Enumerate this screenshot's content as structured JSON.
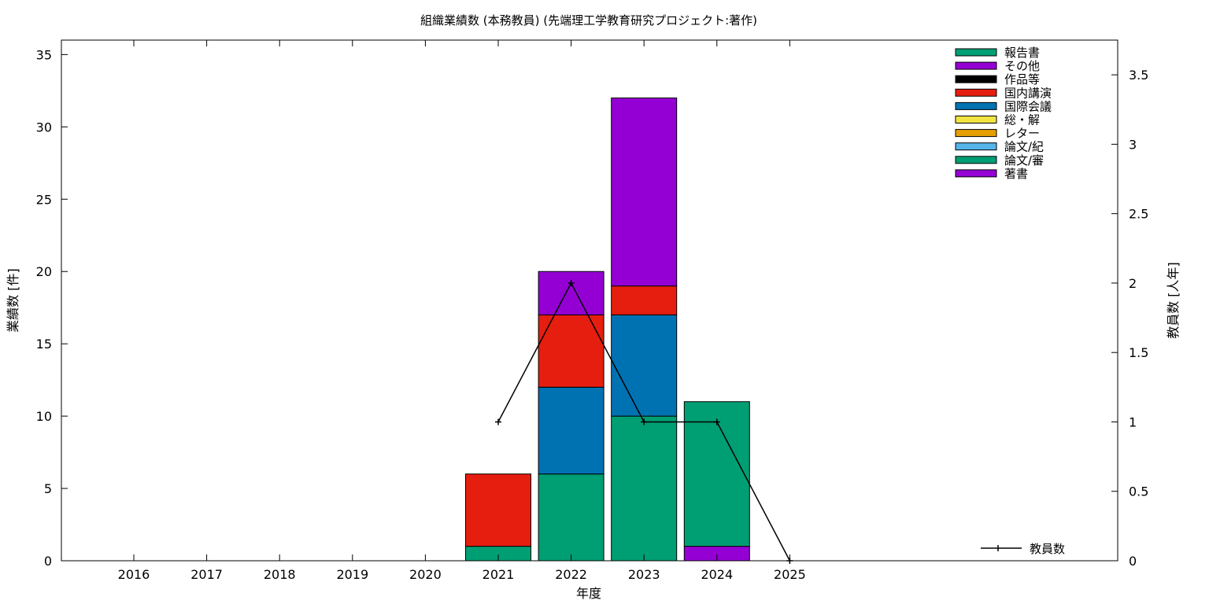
{
  "chart_data": {
    "type": "bar",
    "title": "組織業績数 (本務教員) (先端理工学教育研究プロジェクト:著作)",
    "xlabel": "年度",
    "ylabel": "業績数 [件]",
    "y2label": "教員数 [人年]",
    "categories": [
      "2016",
      "2017",
      "2018",
      "2019",
      "2020",
      "2021",
      "2022",
      "2023",
      "2024",
      "2025"
    ],
    "ylim": [
      0,
      36
    ],
    "y2lim": [
      0,
      3.75
    ],
    "yticks": [
      "0",
      "5",
      "10",
      "15",
      "20",
      "25",
      "30",
      "35"
    ],
    "y2ticks": [
      "0",
      "0.5",
      "1",
      "1.5",
      "2",
      "2.5",
      "3",
      "3.5"
    ],
    "legend_position": "top-right",
    "grid": false,
    "series": [
      {
        "name": "著書",
        "color": "#9400d3",
        "values": [
          0,
          0,
          0,
          0,
          0,
          0,
          0,
          0,
          1,
          0
        ]
      },
      {
        "name": "論文/審",
        "color": "#009e73",
        "values": [
          0,
          0,
          0,
          0,
          0,
          1,
          6,
          10,
          10,
          0
        ]
      },
      {
        "name": "論文/紀",
        "color": "#56b4e9",
        "values": [
          0,
          0,
          0,
          0,
          0,
          0,
          0,
          0,
          0,
          0
        ]
      },
      {
        "name": "レター",
        "color": "#e69f00",
        "values": [
          0,
          0,
          0,
          0,
          0,
          0,
          0,
          0,
          0,
          0
        ]
      },
      {
        "name": "総・解",
        "color": "#f0e442",
        "values": [
          0,
          0,
          0,
          0,
          0,
          0,
          0,
          0,
          0,
          0
        ]
      },
      {
        "name": "国際会議",
        "color": "#0072b2",
        "values": [
          0,
          0,
          0,
          0,
          0,
          0,
          6,
          7,
          0,
          0
        ]
      },
      {
        "name": "国内講演",
        "color": "#e51e10",
        "values": [
          0,
          0,
          0,
          0,
          0,
          5,
          5,
          2,
          0,
          0
        ]
      },
      {
        "name": "作品等",
        "color": "#000000",
        "values": [
          0,
          0,
          0,
          0,
          0,
          0,
          0,
          0,
          0,
          0
        ]
      },
      {
        "name": "その他",
        "color": "#9400d3",
        "values": [
          0,
          0,
          0,
          0,
          0,
          0,
          3,
          13,
          0,
          0
        ]
      },
      {
        "name": "報告書",
        "color": "#009e73",
        "values": [
          0,
          0,
          0,
          0,
          0,
          0,
          0,
          0,
          0,
          0
        ]
      }
    ],
    "line_series": {
      "name": "教員数",
      "color": "#000000",
      "x": [
        "2021",
        "2022",
        "2023",
        "2024",
        "2025"
      ],
      "values": [
        1,
        2,
        1,
        1,
        0
      ]
    }
  }
}
